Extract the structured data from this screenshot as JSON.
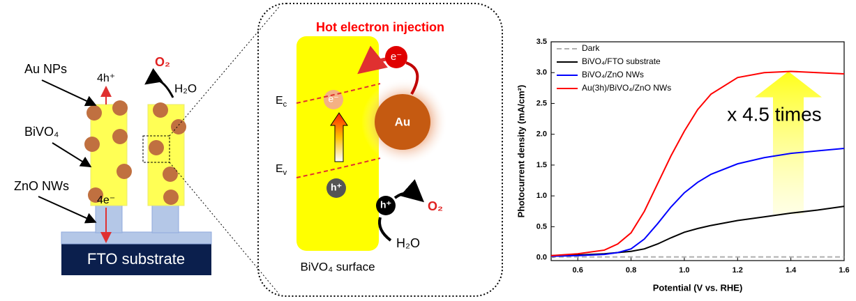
{
  "diagram": {
    "au_nps": "Au NPs",
    "bivo4": "BiVO₄",
    "zno_nws": "ZnO NWs",
    "holes": "4h⁺",
    "electrons": "4e⁻",
    "o2": "O₂",
    "h2o": "H₂O",
    "fto": "FTO substrate"
  },
  "inset": {
    "title": "Hot electron injection",
    "e_au": "e⁻",
    "e_injected": "e⁻",
    "au": "Au",
    "ec": "E",
    "ec_sub": "c",
    "ev": "E",
    "ev_sub": "v",
    "h_band": "h⁺",
    "h_surface": "h⁺",
    "o2": "O₂",
    "h2o": "H₂O",
    "caption": "BiVO₄ surface"
  },
  "chart_data": {
    "type": "line",
    "xlabel": "Potential (V vs. RHE)",
    "ylabel": "Photocurrent density (mA/cm²)",
    "annotation": "x 4.5 times",
    "legend": "upper left",
    "x": [
      0.5,
      0.6,
      0.7,
      0.75,
      0.8,
      0.85,
      0.9,
      0.95,
      1.0,
      1.05,
      1.1,
      1.2,
      1.3,
      1.4,
      1.5,
      1.6
    ],
    "series": [
      {
        "name": "Dark",
        "color": "#b0b0b0",
        "dashed": true,
        "values": [
          0.01,
          0.01,
          0.01,
          0.01,
          0.01,
          0.01,
          0.01,
          0.01,
          0.01,
          0.01,
          0.01,
          0.01,
          0.01,
          0.01,
          0.01,
          0.01
        ]
      },
      {
        "name": "BiVO₄/FTO substrate",
        "color": "#000000",
        "values": [
          0.03,
          0.04,
          0.06,
          0.08,
          0.1,
          0.14,
          0.22,
          0.32,
          0.41,
          0.47,
          0.52,
          0.6,
          0.66,
          0.72,
          0.77,
          0.83
        ]
      },
      {
        "name": "BiVO₄/ZnO NWs",
        "color": "#0000ff",
        "values": [
          0.02,
          0.03,
          0.05,
          0.08,
          0.14,
          0.3,
          0.55,
          0.82,
          1.05,
          1.22,
          1.35,
          1.52,
          1.62,
          1.69,
          1.73,
          1.77
        ]
      },
      {
        "name": "Au(3h)/BiVO₄/ZnO NWs",
        "color": "#ff0000",
        "values": [
          0.03,
          0.06,
          0.12,
          0.22,
          0.4,
          0.75,
          1.2,
          1.65,
          2.05,
          2.4,
          2.65,
          2.92,
          3.0,
          3.02,
          3.0,
          2.98
        ]
      }
    ],
    "xlim": [
      0.5,
      1.6
    ],
    "xticks": [
      0.6,
      0.8,
      {
        "value": 1.0,
        "label": "1.0"
      },
      1.2,
      1.4,
      1.6
    ],
    "ylim": [
      -0.05,
      3.5
    ],
    "yticks": [
      {
        "value": 0,
        "label": "0.0"
      },
      0.5,
      {
        "value": 1,
        "label": "1.0"
      },
      1.5,
      {
        "value": 2,
        "label": "2.0"
      },
      2.5,
      {
        "value": 3,
        "label": "3.0"
      },
      3.5
    ]
  }
}
